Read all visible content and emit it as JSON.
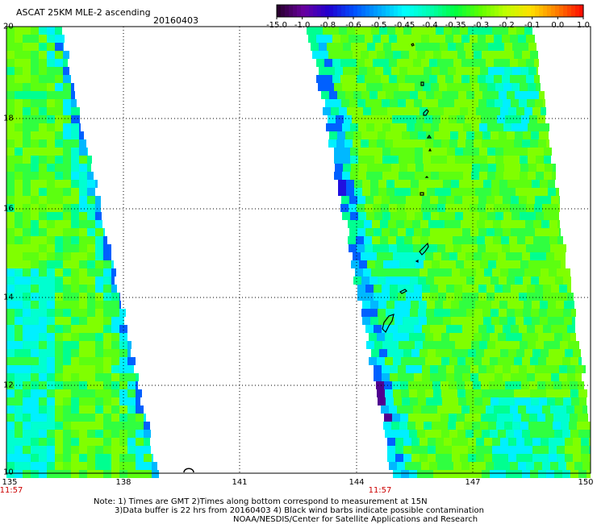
{
  "header": {
    "title": "ASCAT 25KM MLE-2 ascending",
    "date": "20160403"
  },
  "colorbar": {
    "labels": [
      "-15.0",
      "-1.0",
      "-0.8",
      "-0.6",
      "-0.5",
      "-0.45",
      "-0.4",
      "-0.35",
      "-0.3",
      "-0.2",
      "-0.1",
      "0.0",
      "1.0"
    ],
    "colors": [
      "#2a0030",
      "#6a00a0",
      "#2000d0",
      "#0050ff",
      "#00a8ff",
      "#00ffff",
      "#00ffb0",
      "#00ff40",
      "#60ff00",
      "#c0ff00",
      "#ffe000",
      "#ff8000",
      "#ff1000"
    ]
  },
  "axes": {
    "lon_labels": [
      "135",
      "138",
      "141",
      "144",
      "147",
      "150"
    ],
    "lat_labels": [
      "20",
      "18",
      "16",
      "14",
      "12",
      "10"
    ],
    "times": [
      "11:57",
      "11:57"
    ]
  },
  "notes": {
    "line1": "Note: 1) Times are GMT 2)Times along bottom correspond to measurement at 15N",
    "line2": "3)Data buffer is 22 hrs from 20160403 4) Black wind barbs indicate possible contamination",
    "line3": "NOAA/NESDIS/Center for Satellite Applications and Research"
  }
}
